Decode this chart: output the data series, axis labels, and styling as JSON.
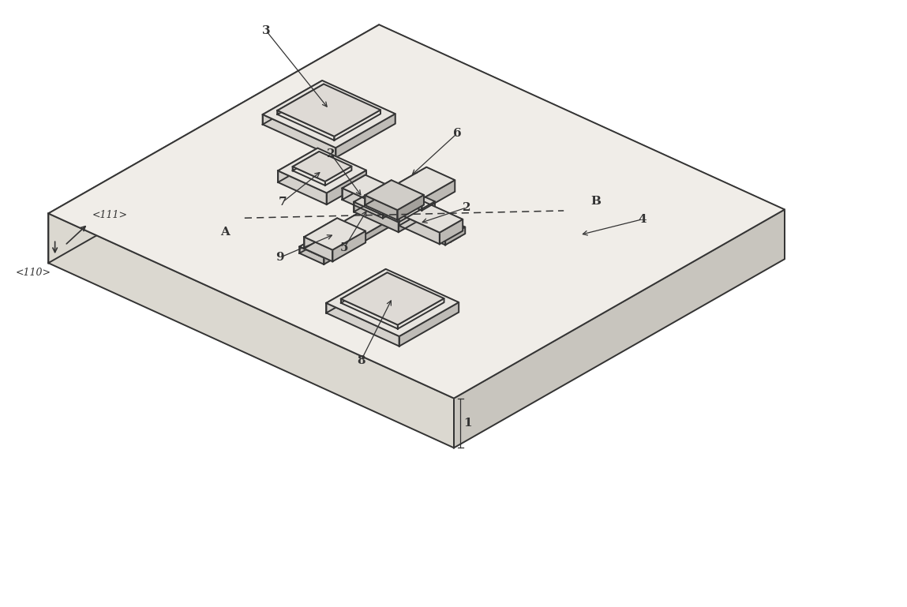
{
  "background_color": "#ffffff",
  "line_color": "#333333",
  "line_width": 1.4,
  "fig_width": 11.49,
  "fig_height": 7.69,
  "dpi": 100,
  "label_fontsize": 11,
  "note_fontsize": 9,
  "top_color": "#f0ede8",
  "front_color": "#dbd8d0",
  "right_color": "#c8c5be",
  "pad_top": "#e8e5e0",
  "pad_front": "#d4d1cc",
  "pad_right": "#bfbcb7",
  "nw_top": "#e0ddd8",
  "nw_front": "#c8c5c0",
  "nw_right": "#b4b1ac"
}
